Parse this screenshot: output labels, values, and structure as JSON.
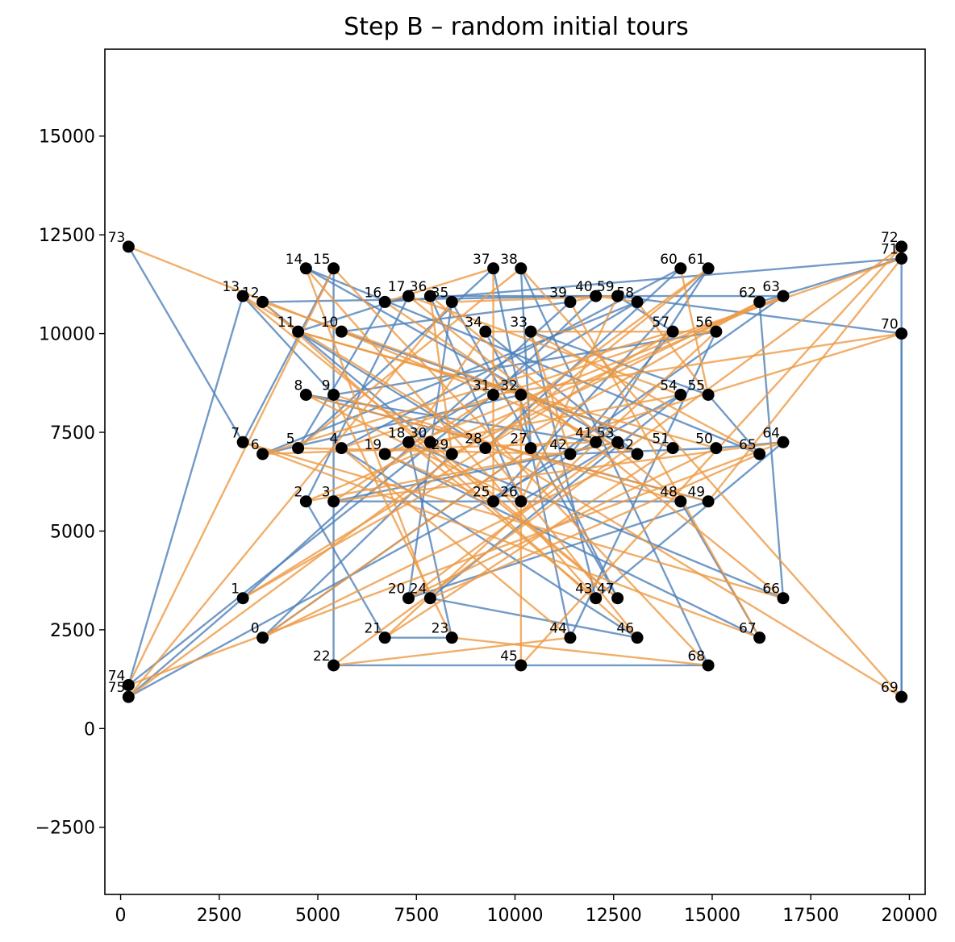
{
  "chart_data": {
    "type": "scatter",
    "title": "Step B – random initial tours",
    "xlabel": "",
    "ylabel": "",
    "xlim": [
      -400,
      20400
    ],
    "ylim": [
      -4200,
      17200
    ],
    "xticks": [
      0,
      2500,
      5000,
      7500,
      10000,
      12500,
      15000,
      17500,
      20000
    ],
    "yticks": [
      -2500,
      0,
      2500,
      5000,
      7500,
      10000,
      12500,
      15000
    ],
    "xtick_labels": [
      "0",
      "2500",
      "5000",
      "7500",
      "10000",
      "12500",
      "15000",
      "17500",
      "20000"
    ],
    "ytick_labels": [
      "−2500",
      "0",
      "2500",
      "5000",
      "7500",
      "10000",
      "12500",
      "15000"
    ],
    "grid": false,
    "nodes": [
      {
        "id": "0",
        "x": 3600,
        "y": 2300
      },
      {
        "id": "1",
        "x": 3100,
        "y": 3300
      },
      {
        "id": "2",
        "x": 4700,
        "y": 5750
      },
      {
        "id": "3",
        "x": 5400,
        "y": 5750
      },
      {
        "id": "4",
        "x": 5600,
        "y": 7100
      },
      {
        "id": "5",
        "x": 4500,
        "y": 7100
      },
      {
        "id": "6",
        "x": 3600,
        "y": 6950
      },
      {
        "id": "7",
        "x": 3100,
        "y": 7250
      },
      {
        "id": "8",
        "x": 4700,
        "y": 8450
      },
      {
        "id": "9",
        "x": 5400,
        "y": 8450
      },
      {
        "id": "10",
        "x": 5600,
        "y": 10050
      },
      {
        "id": "11",
        "x": 4500,
        "y": 10050
      },
      {
        "id": "12",
        "x": 3600,
        "y": 10800
      },
      {
        "id": "13",
        "x": 3100,
        "y": 10950
      },
      {
        "id": "14",
        "x": 4700,
        "y": 11650
      },
      {
        "id": "15",
        "x": 5400,
        "y": 11650
      },
      {
        "id": "16",
        "x": 6700,
        "y": 10800
      },
      {
        "id": "17",
        "x": 7300,
        "y": 10950
      },
      {
        "id": "18",
        "x": 7300,
        "y": 7250
      },
      {
        "id": "19",
        "x": 6700,
        "y": 6950
      },
      {
        "id": "20",
        "x": 7300,
        "y": 3300
      },
      {
        "id": "21",
        "x": 6700,
        "y": 2300
      },
      {
        "id": "22",
        "x": 5400,
        "y": 1600
      },
      {
        "id": "23",
        "x": 8400,
        "y": 2300
      },
      {
        "id": "24",
        "x": 7850,
        "y": 3300
      },
      {
        "id": "25",
        "x": 9450,
        "y": 5750
      },
      {
        "id": "26",
        "x": 10150,
        "y": 5750
      },
      {
        "id": "27",
        "x": 10400,
        "y": 7100
      },
      {
        "id": "28",
        "x": 9250,
        "y": 7100
      },
      {
        "id": "29",
        "x": 8400,
        "y": 6950
      },
      {
        "id": "30",
        "x": 7850,
        "y": 7250
      },
      {
        "id": "31",
        "x": 9450,
        "y": 8450
      },
      {
        "id": "32",
        "x": 10150,
        "y": 8450
      },
      {
        "id": "33",
        "x": 10400,
        "y": 10050
      },
      {
        "id": "34",
        "x": 9250,
        "y": 10050
      },
      {
        "id": "35",
        "x": 8400,
        "y": 10800
      },
      {
        "id": "36",
        "x": 7850,
        "y": 10950
      },
      {
        "id": "37",
        "x": 9450,
        "y": 11650
      },
      {
        "id": "38",
        "x": 10150,
        "y": 11650
      },
      {
        "id": "39",
        "x": 11400,
        "y": 10800
      },
      {
        "id": "40",
        "x": 12050,
        "y": 10950
      },
      {
        "id": "41",
        "x": 12050,
        "y": 7250
      },
      {
        "id": "42",
        "x": 11400,
        "y": 6950
      },
      {
        "id": "43",
        "x": 12050,
        "y": 3300
      },
      {
        "id": "44",
        "x": 11400,
        "y": 2300
      },
      {
        "id": "45",
        "x": 10150,
        "y": 1600
      },
      {
        "id": "46",
        "x": 13100,
        "y": 2300
      },
      {
        "id": "47",
        "x": 12600,
        "y": 3300
      },
      {
        "id": "48",
        "x": 14200,
        "y": 5750
      },
      {
        "id": "49",
        "x": 14900,
        "y": 5750
      },
      {
        "id": "50",
        "x": 15100,
        "y": 7100
      },
      {
        "id": "51",
        "x": 14000,
        "y": 7100
      },
      {
        "id": "52",
        "x": 13100,
        "y": 6950
      },
      {
        "id": "53",
        "x": 12600,
        "y": 7250
      },
      {
        "id": "54",
        "x": 14200,
        "y": 8450
      },
      {
        "id": "55",
        "x": 14900,
        "y": 8450
      },
      {
        "id": "56",
        "x": 15100,
        "y": 10050
      },
      {
        "id": "57",
        "x": 14000,
        "y": 10050
      },
      {
        "id": "58",
        "x": 13100,
        "y": 10800
      },
      {
        "id": "59",
        "x": 12600,
        "y": 10950
      },
      {
        "id": "60",
        "x": 14200,
        "y": 11650
      },
      {
        "id": "61",
        "x": 14900,
        "y": 11650
      },
      {
        "id": "62",
        "x": 16200,
        "y": 10800
      },
      {
        "id": "63",
        "x": 16800,
        "y": 10950
      },
      {
        "id": "64",
        "x": 16800,
        "y": 7250
      },
      {
        "id": "65",
        "x": 16200,
        "y": 6950
      },
      {
        "id": "66",
        "x": 16800,
        "y": 3300
      },
      {
        "id": "67",
        "x": 16200,
        "y": 2300
      },
      {
        "id": "68",
        "x": 14900,
        "y": 1600
      },
      {
        "id": "69",
        "x": 19800,
        "y": 800
      },
      {
        "id": "70",
        "x": 19800,
        "y": 10000
      },
      {
        "id": "71",
        "x": 19800,
        "y": 11900
      },
      {
        "id": "72",
        "x": 19800,
        "y": 12200
      },
      {
        "id": "73",
        "x": 200,
        "y": 12200
      },
      {
        "id": "74",
        "x": 200,
        "y": 1100
      },
      {
        "id": "75",
        "x": 200,
        "y": 800
      }
    ],
    "tours": [
      {
        "color": "#4f81b9",
        "order": [
          73,
          7,
          15,
          22,
          45,
          68,
          38,
          27,
          0,
          29,
          30,
          12,
          40,
          31,
          74,
          13,
          9,
          56,
          44,
          37,
          5,
          16,
          71,
          62,
          66,
          18,
          23,
          21,
          2,
          17,
          11,
          28,
          60,
          4,
          46,
          24,
          54,
          75,
          1,
          39,
          10,
          51,
          32,
          6,
          58,
          19,
          67,
          48,
          3,
          53,
          26,
          36,
          63,
          25,
          61,
          41,
          8,
          49,
          20,
          35,
          47,
          34,
          52,
          14,
          65,
          55,
          33,
          43,
          64,
          50,
          42,
          57,
          59,
          70,
          69,
          72
        ]
      },
      {
        "color": "#ee9a43",
        "order": [
          73,
          10,
          52,
          0,
          27,
          70,
          31,
          3,
          64,
          74,
          15,
          68,
          23,
          9,
          48,
          36,
          29,
          62,
          1,
          57,
          6,
          41,
          16,
          37,
          25,
          19,
          63,
          2,
          53,
          20,
          50,
          11,
          32,
          45,
          72,
          22,
          44,
          4,
          71,
          49,
          8,
          26,
          59,
          35,
          75,
          61,
          28,
          46,
          12,
          51,
          21,
          56,
          34,
          18,
          43,
          14,
          24,
          65,
          33,
          42,
          5,
          38,
          69,
          13,
          47,
          30,
          54,
          17,
          66,
          7,
          67,
          39,
          40,
          58,
          55,
          60
        ]
      }
    ],
    "point_color": "#000000"
  }
}
